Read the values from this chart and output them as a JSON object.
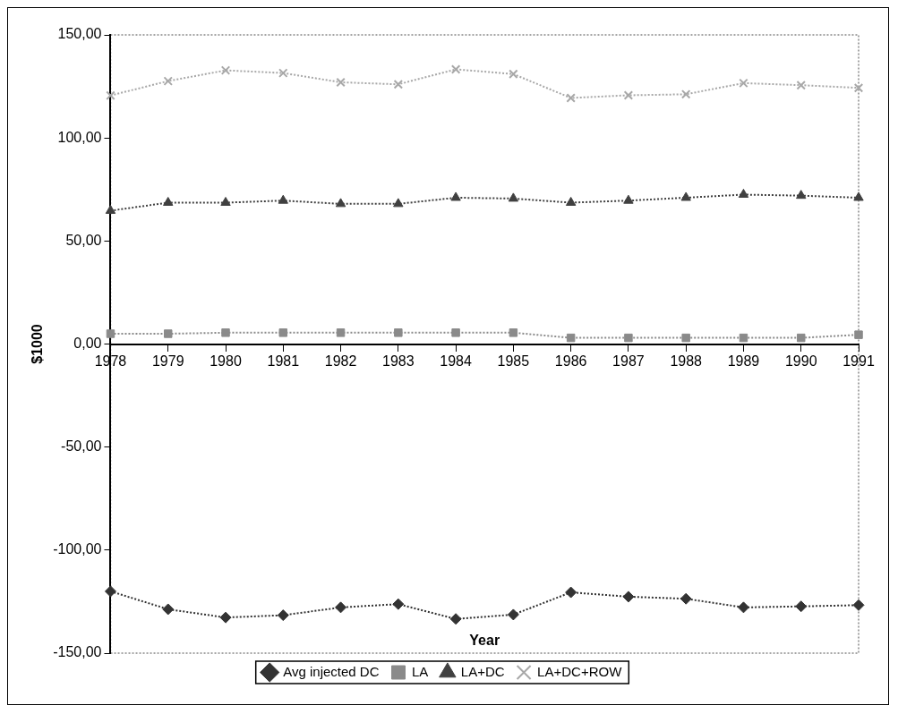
{
  "chart_data": {
    "type": "line",
    "xlabel": "Year",
    "ylabel": "$1000",
    "categories": [
      "1978",
      "1979",
      "1980",
      "1981",
      "1982",
      "1983",
      "1984",
      "1985",
      "1986",
      "1987",
      "1988",
      "1989",
      "1990",
      "1991"
    ],
    "series": [
      {
        "name": "Avg injected DC",
        "color": "#333333",
        "marker": "diamond",
        "values": [
          -120,
          -128.7,
          -132.7,
          -131.6,
          -127.8,
          -126.2,
          -133.4,
          -131.3,
          -120.5,
          -122.6,
          -123.6,
          -127.8,
          -127.3,
          -126.7
        ]
      },
      {
        "name": "LA",
        "color": "#8a8a8a",
        "marker": "square",
        "values": [
          5,
          5,
          5.5,
          5.5,
          5.5,
          5.5,
          5.5,
          5.5,
          3,
          3,
          3,
          3,
          3,
          4.5
        ]
      },
      {
        "name": "LA+DC",
        "color": "#404040",
        "marker": "triangle",
        "values": [
          64.7,
          68.6,
          68.6,
          69.6,
          68,
          68,
          71,
          70.6,
          68.6,
          69.6,
          71,
          72.5,
          72,
          71
        ]
      },
      {
        "name": "LA+DC+ROW",
        "color": "#a8a8a8",
        "marker": "cross",
        "values": [
          120.6,
          127.6,
          132.8,
          131.5,
          127,
          126,
          133.3,
          131,
          119.4,
          120.7,
          121.2,
          126.6,
          125.6,
          124.3
        ]
      }
    ],
    "ylim": [
      -150,
      150
    ],
    "yticks": [
      {
        "value": -150,
        "label": "-150,00"
      },
      {
        "value": -100,
        "label": "-100,00"
      },
      {
        "value": -50,
        "label": "-50,00"
      },
      {
        "value": 0,
        "label": "0,00"
      },
      {
        "value": 50,
        "label": "50,00"
      },
      {
        "value": 100,
        "label": "100,00"
      },
      {
        "value": 150,
        "label": "150,00"
      }
    ],
    "grid": false,
    "legend": "bottom",
    "line_style": "dotted"
  }
}
